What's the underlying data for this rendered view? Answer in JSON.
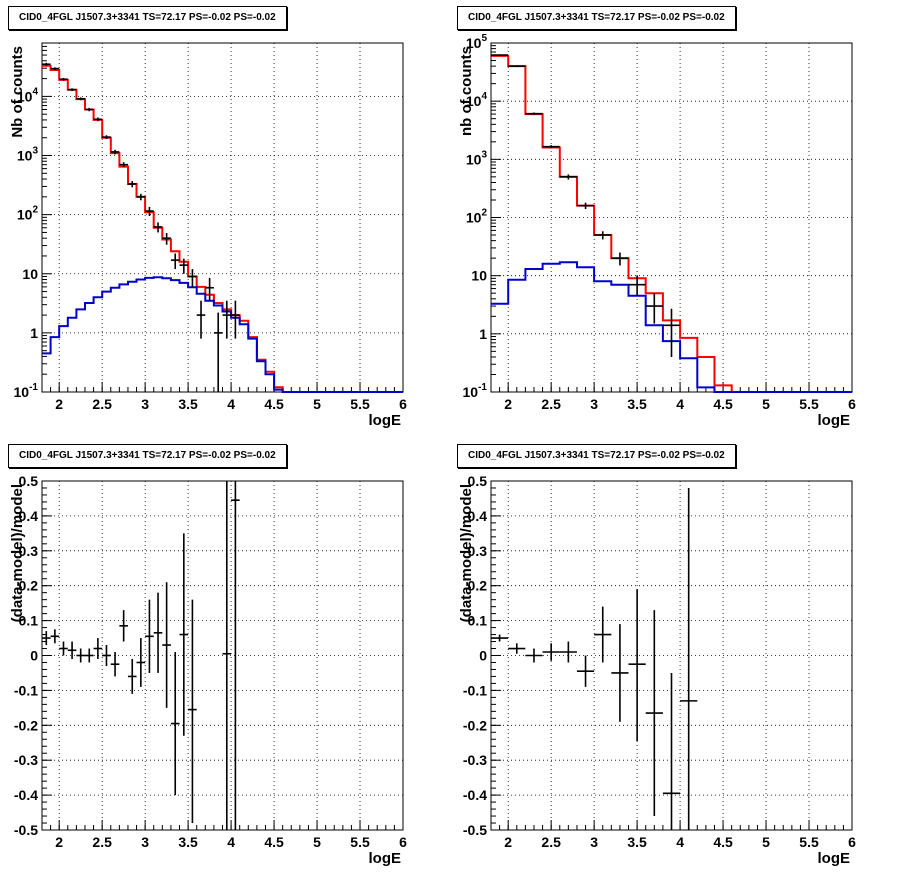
{
  "chart_data": [
    {
      "type": "line",
      "title": "CID0_4FGL J1507.3+3341 TS=72.17 PS=-0.02 PS=-0.02",
      "xlabel": "logE",
      "ylabel": "Nb of counts",
      "xlim": [
        1.8,
        6
      ],
      "ylim": [
        0.1,
        80000
      ],
      "log_y": true,
      "grid": true,
      "x_ticks": [
        "2",
        "2.5",
        "3",
        "3.5",
        "4",
        "4.5",
        "5",
        "5.5",
        "6"
      ],
      "y_ticks": [
        {
          "v": 0.1,
          "label": "10",
          "sup": "-1"
        },
        {
          "v": 1,
          "label": "1",
          "sup": ""
        },
        {
          "v": 10,
          "label": "10",
          "sup": ""
        },
        {
          "v": 100,
          "label": "10",
          "sup": "2"
        },
        {
          "v": 1000,
          "label": "10",
          "sup": "3"
        },
        {
          "v": 10000,
          "label": "10",
          "sup": "4"
        }
      ],
      "bin_edges": [
        1.8,
        1.9,
        2.0,
        2.1,
        2.2,
        2.3,
        2.4,
        2.5,
        2.6,
        2.7,
        2.8,
        2.9,
        3.0,
        3.1,
        3.2,
        3.3,
        3.4,
        3.5,
        3.6,
        3.7,
        3.8,
        3.9,
        4.0,
        4.1,
        4.2,
        4.3,
        4.4,
        4.5,
        4.6,
        4.7,
        4.8,
        4.9,
        5.0,
        5.1,
        5.2,
        5.3,
        5.4,
        5.5,
        5.6,
        5.7,
        5.8,
        5.9,
        6.0
      ],
      "series": [
        {
          "color": "#ff0000",
          "values": [
            33000,
            28000,
            19000,
            13000,
            9000,
            6000,
            4000,
            2000,
            1100,
            650,
            330,
            200,
            110,
            60,
            38,
            24,
            16,
            9,
            6,
            4.4,
            3.2,
            2.5,
            2.0,
            1.6,
            0.85,
            0.35,
            0.22,
            0.12,
            0.1,
            0.1,
            0.1,
            0.1,
            0.1,
            0.1,
            0.1,
            0.1,
            0.1,
            0.1,
            0.1,
            0.1,
            0.1,
            0.1
          ]
        },
        {
          "color": "#0000cc",
          "values": [
            0.45,
            0.85,
            1.3,
            1.8,
            2.5,
            3.2,
            4.0,
            5.0,
            5.8,
            6.6,
            7.3,
            8.0,
            8.5,
            8.7,
            8.4,
            7.8,
            7.0,
            5.9,
            4.6,
            3.5,
            2.9,
            2.3,
            1.8,
            1.4,
            0.8,
            0.33,
            0.2,
            0.11,
            0.1,
            0.1,
            0.1,
            0.1,
            0.1,
            0.1,
            0.1,
            0.1,
            0.1,
            0.1,
            0.1,
            0.1,
            0.1,
            0.1
          ]
        }
      ],
      "points": [
        {
          "x": 1.85,
          "y": 35000,
          "lo": 33000,
          "hi": 37000
        },
        {
          "x": 1.95,
          "y": 29500,
          "lo": 28000,
          "hi": 31000
        },
        {
          "x": 2.05,
          "y": 19500,
          "lo": 18500,
          "hi": 20500
        },
        {
          "x": 2.15,
          "y": 13000,
          "lo": 12300,
          "hi": 13700
        },
        {
          "x": 2.25,
          "y": 9100,
          "lo": 8600,
          "hi": 9600
        },
        {
          "x": 2.35,
          "y": 6000,
          "lo": 5600,
          "hi": 6400
        },
        {
          "x": 2.45,
          "y": 4100,
          "lo": 3800,
          "hi": 4400
        },
        {
          "x": 2.55,
          "y": 2050,
          "lo": 1900,
          "hi": 2200
        },
        {
          "x": 2.65,
          "y": 1150,
          "lo": 1050,
          "hi": 1250
        },
        {
          "x": 2.75,
          "y": 700,
          "lo": 630,
          "hi": 770
        },
        {
          "x": 2.85,
          "y": 330,
          "lo": 290,
          "hi": 370
        },
        {
          "x": 2.95,
          "y": 200,
          "lo": 175,
          "hi": 225
        },
        {
          "x": 3.05,
          "y": 115,
          "lo": 95,
          "hi": 135
        },
        {
          "x": 3.15,
          "y": 62,
          "lo": 50,
          "hi": 74
        },
        {
          "x": 3.25,
          "y": 40,
          "lo": 31,
          "hi": 49
        },
        {
          "x": 3.35,
          "y": 17,
          "lo": 12,
          "hi": 22
        },
        {
          "x": 3.45,
          "y": 14,
          "lo": 10,
          "hi": 18
        },
        {
          "x": 3.55,
          "y": 9,
          "lo": 6,
          "hi": 12
        },
        {
          "x": 3.65,
          "y": 2.0,
          "lo": 0.8,
          "hi": 3.5
        },
        {
          "x": 3.75,
          "y": 5.8,
          "lo": 3.5,
          "hi": 8.5
        },
        {
          "x": 3.85,
          "y": 1.0,
          "lo": 0.1,
          "hi": 2.2
        },
        {
          "x": 3.95,
          "y": 2.0,
          "lo": 0.8,
          "hi": 3.5
        },
        {
          "x": 4.05,
          "y": 2.0,
          "lo": 0.8,
          "hi": 3.5
        }
      ]
    },
    {
      "type": "line",
      "title": "CID0_4FGL J1507.3+3341 TS=72.17 PS=-0.02 PS=-0.02",
      "xlabel": "logE",
      "ylabel": "nb of counts",
      "xlim": [
        1.8,
        6
      ],
      "ylim": [
        0.1,
        100000
      ],
      "log_y": true,
      "grid": true,
      "x_ticks": [
        "2",
        "2.5",
        "3",
        "3.5",
        "4",
        "4.5",
        "5",
        "5.5",
        "6"
      ],
      "y_ticks": [
        {
          "v": 0.1,
          "label": "10",
          "sup": "-1"
        },
        {
          "v": 1,
          "label": "1",
          "sup": ""
        },
        {
          "v": 10,
          "label": "10",
          "sup": ""
        },
        {
          "v": 100,
          "label": "10",
          "sup": "2"
        },
        {
          "v": 1000,
          "label": "10",
          "sup": "3"
        },
        {
          "v": 10000,
          "label": "10",
          "sup": "4"
        },
        {
          "v": 100000,
          "label": "10",
          "sup": "5"
        }
      ],
      "bin_edges": [
        1.8,
        2.0,
        2.2,
        2.4,
        2.6,
        2.8,
        3.0,
        3.2,
        3.4,
        3.6,
        3.8,
        4.0,
        4.2,
        4.4,
        4.6,
        4.8,
        5.0,
        5.2,
        5.4,
        5.6,
        5.8,
        6.0
      ],
      "series": [
        {
          "color": "#ff0000",
          "values": [
            60000,
            40000,
            6000,
            1600,
            500,
            160,
            50,
            20,
            9,
            5,
            1.7,
            0.85,
            0.4,
            0.13,
            0.1,
            0.1,
            0.1,
            0.1,
            0.1,
            0.1,
            0.1
          ]
        },
        {
          "color": "#0000cc",
          "values": [
            3.3,
            8.5,
            13,
            16,
            17,
            14,
            8,
            7,
            4.5,
            1.4,
            0.75,
            0.38,
            0.12,
            0.1,
            0.1,
            0.1,
            0.1,
            0.1,
            0.1,
            0.1,
            0.1
          ]
        }
      ],
      "points": [
        {
          "x": 1.9,
          "y": 62000,
          "lo": 60000,
          "hi": 64000
        },
        {
          "x": 2.1,
          "y": 40000,
          "lo": 38500,
          "hi": 41500
        },
        {
          "x": 2.3,
          "y": 6100,
          "lo": 5800,
          "hi": 6400
        },
        {
          "x": 2.5,
          "y": 1650,
          "lo": 1550,
          "hi": 1750
        },
        {
          "x": 2.7,
          "y": 500,
          "lo": 450,
          "hi": 550
        },
        {
          "x": 2.9,
          "y": 160,
          "lo": 140,
          "hi": 180
        },
        {
          "x": 3.1,
          "y": 50,
          "lo": 42,
          "hi": 58
        },
        {
          "x": 3.3,
          "y": 20,
          "lo": 15,
          "hi": 25
        },
        {
          "x": 3.5,
          "y": 7,
          "lo": 4.5,
          "hi": 10
        },
        {
          "x": 3.7,
          "y": 3.0,
          "lo": 1.5,
          "hi": 5.0
        },
        {
          "x": 3.9,
          "y": 1.4,
          "lo": 0.4,
          "hi": 2.7
        }
      ]
    },
    {
      "type": "scatter",
      "title": "CID0_4FGL J1507.3+3341 TS=72.17 PS=-0.02 PS=-0.02",
      "xlabel": "logE",
      "ylabel": "(data-model)/model",
      "xlim": [
        1.8,
        6
      ],
      "ylim": [
        -0.5,
        0.5
      ],
      "grid": true,
      "x_ticks": [
        "2",
        "2.5",
        "3",
        "3.5",
        "4",
        "4.5",
        "5",
        "5.5",
        "6"
      ],
      "y_ticks": [
        "-0.5",
        "-0.4",
        "-0.3",
        "-0.2",
        "-0.1",
        "0",
        "0.1",
        "0.2",
        "0.3",
        "0.4",
        "0.5"
      ],
      "bin_half_width": 0.05,
      "points": [
        {
          "x": 1.85,
          "y": 0.05,
          "lo": 0.03,
          "hi": 0.07
        },
        {
          "x": 1.95,
          "y": 0.055,
          "lo": 0.035,
          "hi": 0.075
        },
        {
          "x": 2.05,
          "y": 0.02,
          "lo": 0.0,
          "hi": 0.04
        },
        {
          "x": 2.15,
          "y": 0.015,
          "lo": -0.01,
          "hi": 0.04
        },
        {
          "x": 2.25,
          "y": 0.0,
          "lo": -0.02,
          "hi": 0.02
        },
        {
          "x": 2.35,
          "y": 0.0,
          "lo": -0.02,
          "hi": 0.02
        },
        {
          "x": 2.45,
          "y": 0.02,
          "lo": -0.01,
          "hi": 0.05
        },
        {
          "x": 2.55,
          "y": 0.0,
          "lo": -0.03,
          "hi": 0.03
        },
        {
          "x": 2.65,
          "y": -0.025,
          "lo": -0.06,
          "hi": 0.01
        },
        {
          "x": 2.75,
          "y": 0.085,
          "lo": 0.04,
          "hi": 0.13
        },
        {
          "x": 2.85,
          "y": -0.06,
          "lo": -0.11,
          "hi": -0.01
        },
        {
          "x": 2.95,
          "y": -0.02,
          "lo": -0.09,
          "hi": 0.05
        },
        {
          "x": 3.05,
          "y": 0.055,
          "lo": -0.05,
          "hi": 0.16
        },
        {
          "x": 3.15,
          "y": 0.065,
          "lo": -0.05,
          "hi": 0.18
        },
        {
          "x": 3.25,
          "y": 0.03,
          "lo": -0.15,
          "hi": 0.21
        },
        {
          "x": 3.35,
          "y": -0.195,
          "lo": -0.4,
          "hi": 0.01
        },
        {
          "x": 3.45,
          "y": 0.06,
          "lo": -0.23,
          "hi": 0.35
        },
        {
          "x": 3.55,
          "y": -0.155,
          "lo": -0.48,
          "hi": 0.16
        },
        {
          "x": 3.95,
          "y": 0.005,
          "lo": -0.5,
          "hi": 0.5
        },
        {
          "x": 4.05,
          "y": 0.445,
          "lo": -0.5,
          "hi": 0.5
        }
      ]
    },
    {
      "type": "scatter",
      "title": "CID0_4FGL J1507.3+3341 TS=72.17 PS=-0.02 PS=-0.02",
      "xlabel": "logE",
      "ylabel": "(data-model)/model",
      "xlim": [
        1.8,
        6
      ],
      "ylim": [
        -0.5,
        0.5
      ],
      "grid": true,
      "x_ticks": [
        "2",
        "2.5",
        "3",
        "3.5",
        "4",
        "4.5",
        "5",
        "5.5",
        "6"
      ],
      "y_ticks": [
        "-0.5",
        "-0.4",
        "-0.3",
        "-0.2",
        "-0.1",
        "0",
        "0.1",
        "0.2",
        "0.3",
        "0.4",
        "0.5"
      ],
      "bin_half_width": 0.1,
      "points": [
        {
          "x": 1.9,
          "y": 0.05,
          "lo": 0.04,
          "hi": 0.06
        },
        {
          "x": 2.1,
          "y": 0.02,
          "lo": 0.005,
          "hi": 0.035
        },
        {
          "x": 2.3,
          "y": 0.0,
          "lo": -0.02,
          "hi": 0.02
        },
        {
          "x": 2.5,
          "y": 0.01,
          "lo": -0.015,
          "hi": 0.035
        },
        {
          "x": 2.7,
          "y": 0.01,
          "lo": -0.02,
          "hi": 0.04
        },
        {
          "x": 2.9,
          "y": -0.045,
          "lo": -0.09,
          "hi": 0.0
        },
        {
          "x": 3.1,
          "y": 0.06,
          "lo": -0.02,
          "hi": 0.14
        },
        {
          "x": 3.3,
          "y": -0.05,
          "lo": -0.19,
          "hi": 0.09
        },
        {
          "x": 3.5,
          "y": -0.025,
          "lo": -0.245,
          "hi": 0.19
        },
        {
          "x": 3.7,
          "y": -0.165,
          "lo": -0.46,
          "hi": 0.13
        },
        {
          "x": 3.9,
          "y": -0.395,
          "lo": -0.5,
          "hi": -0.05
        },
        {
          "x": 4.1,
          "y": -0.13,
          "lo": -0.5,
          "hi": 0.48
        }
      ]
    }
  ]
}
